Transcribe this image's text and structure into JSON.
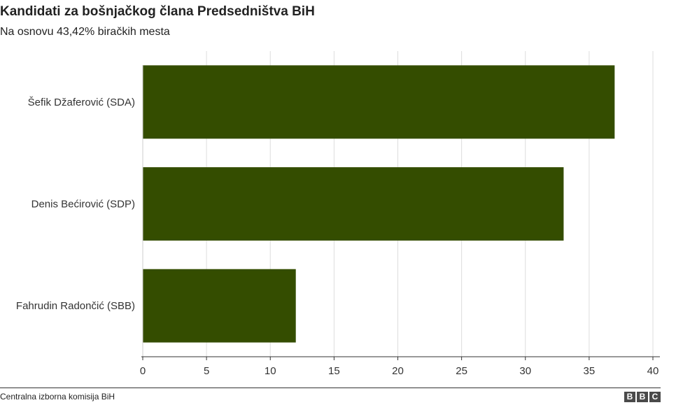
{
  "title": "Kandidati za bošnjačkog člana Predsedništva BiH",
  "subtitle": "Na osnovu 43,42% biračkih mesta",
  "source": "Centralna izborna komisija BiH",
  "logo": {
    "letters": [
      "B",
      "B",
      "C"
    ]
  },
  "colors": {
    "bar": "#344d00",
    "grid": "#dddddd",
    "axis": "#333333"
  },
  "chart_data": {
    "type": "bar",
    "orientation": "horizontal",
    "categories": [
      "Šefik Džaferović (SDA)",
      "Denis Bećirović (SDP)",
      "Fahrudin Radončić (SBB)"
    ],
    "values": [
      37,
      33,
      12
    ],
    "xlim": [
      0,
      40
    ],
    "xticks": [
      0,
      5,
      10,
      15,
      20,
      25,
      30,
      35,
      40
    ],
    "tick_labels": [
      "0",
      "5",
      "10",
      "15",
      "20",
      "25",
      "30",
      "35",
      "40"
    ],
    "grid": true
  }
}
